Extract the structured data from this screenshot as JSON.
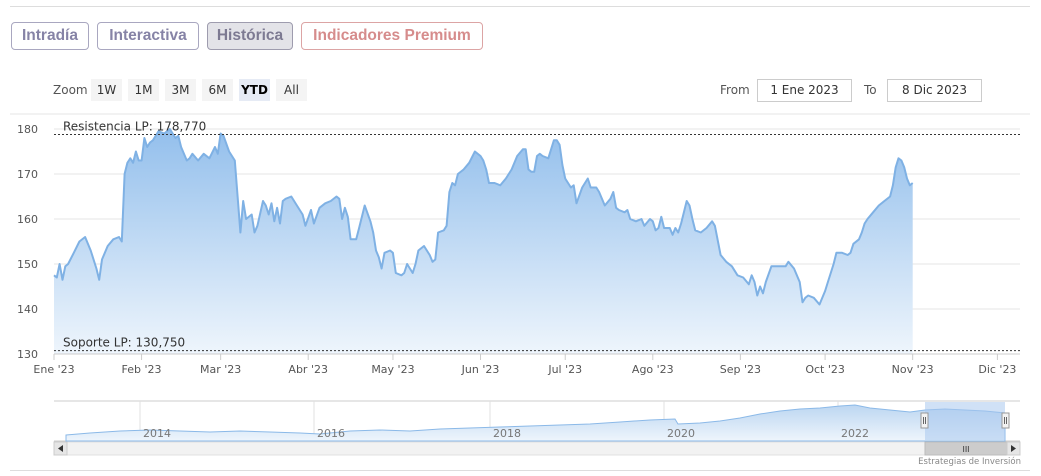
{
  "tabs": [
    {
      "label": "Intradía"
    },
    {
      "label": "Interactiva"
    },
    {
      "label": "Histórica",
      "active": true
    },
    {
      "label": "Indicadores Premium"
    }
  ],
  "zoom": {
    "label": "Zoom",
    "buttons": [
      "1W",
      "1M",
      "3M",
      "6M",
      "YTD",
      "All"
    ],
    "active": "YTD"
  },
  "range": {
    "from_label": "From",
    "from_value": "1 Ene 2023",
    "to_label": "To",
    "to_value": "8 Dic 2023"
  },
  "credit": "Estrategias de Inversión",
  "navigator": {
    "year_labels": [
      "2014",
      "2016",
      "2018",
      "2020",
      "2022"
    ],
    "scroll_grip": "III"
  },
  "colors": {
    "line": "#7fb1e4",
    "fill_top": "#93bfec",
    "fill_bottom": "#eef5fc",
    "resistance": "#333333",
    "support": "#333333"
  },
  "chart_data": {
    "type": "area",
    "title": "",
    "ylim": [
      130,
      182
    ],
    "yticks": [
      130,
      140,
      150,
      160,
      170,
      180
    ],
    "xlim": [
      0,
      342
    ],
    "xticks": [
      {
        "label": "Ene '23",
        "day": 0
      },
      {
        "label": "Feb '23",
        "day": 31
      },
      {
        "label": "Mar '23",
        "day": 59
      },
      {
        "label": "Abr '23",
        "day": 90
      },
      {
        "label": "May '23",
        "day": 120
      },
      {
        "label": "Jun '23",
        "day": 151
      },
      {
        "label": "Jul '23",
        "day": 181
      },
      {
        "label": "Ago '23",
        "day": 212
      },
      {
        "label": "Sep '23",
        "day": 243
      },
      {
        "label": "Oct '23",
        "day": 273
      },
      {
        "label": "Nov '23",
        "day": 304
      },
      {
        "label": "Dic '23",
        "day": 334
      }
    ],
    "resistance": {
      "label": "Resistencia LP: 178,770",
      "value": 178.77
    },
    "support": {
      "label": "Soporte LP: 130,750",
      "value": 130.75
    },
    "series": [
      {
        "points": [
          [
            0,
            147.5
          ],
          [
            1,
            147
          ],
          [
            2,
            150
          ],
          [
            3,
            146.5
          ],
          [
            4,
            149.5
          ],
          [
            5,
            150
          ],
          [
            7,
            152.5
          ],
          [
            9,
            155
          ],
          [
            11,
            156
          ],
          [
            13,
            153
          ],
          [
            15,
            149
          ],
          [
            16,
            146.5
          ],
          [
            17,
            151
          ],
          [
            19,
            154
          ],
          [
            21,
            155.5
          ],
          [
            23,
            156
          ],
          [
            24,
            155
          ],
          [
            25,
            170
          ],
          [
            26,
            172.5
          ],
          [
            27,
            173.5
          ],
          [
            28,
            172.5
          ],
          [
            29,
            175
          ],
          [
            30,
            173
          ],
          [
            31,
            173
          ],
          [
            32,
            178
          ],
          [
            33,
            176
          ],
          [
            34,
            177
          ],
          [
            35,
            177.5
          ],
          [
            37,
            179.5
          ],
          [
            39,
            179
          ],
          [
            41,
            180
          ],
          [
            43,
            178
          ],
          [
            44,
            178.5
          ],
          [
            45,
            176
          ],
          [
            47,
            173
          ],
          [
            48,
            173.5
          ],
          [
            49,
            174.5
          ],
          [
            51,
            173
          ],
          [
            53,
            174.5
          ],
          [
            55,
            173.5
          ],
          [
            57,
            176
          ],
          [
            58,
            174.5
          ],
          [
            59,
            179
          ],
          [
            60,
            178.5
          ],
          [
            62,
            175
          ],
          [
            64,
            173
          ],
          [
            65,
            165
          ],
          [
            66,
            157
          ],
          [
            67,
            164
          ],
          [
            68,
            160
          ],
          [
            70,
            161
          ],
          [
            71,
            157
          ],
          [
            72,
            158.5
          ],
          [
            74,
            164
          ],
          [
            75,
            163
          ],
          [
            76,
            161
          ],
          [
            77,
            163.5
          ],
          [
            78,
            159.5
          ],
          [
            79,
            162.5
          ],
          [
            80,
            159
          ],
          [
            81,
            164
          ],
          [
            82,
            164.5
          ],
          [
            84,
            165
          ],
          [
            86,
            163
          ],
          [
            88,
            161
          ],
          [
            89,
            158.5
          ],
          [
            91,
            162
          ],
          [
            92,
            159
          ],
          [
            94,
            162.5
          ],
          [
            96,
            163.5
          ],
          [
            98,
            164
          ],
          [
            100,
            165
          ],
          [
            101,
            164.5
          ],
          [
            102,
            160
          ],
          [
            103,
            162.5
          ],
          [
            104,
            160.5
          ],
          [
            105,
            155.5
          ],
          [
            107,
            155.5
          ],
          [
            108,
            158
          ],
          [
            110,
            163
          ],
          [
            112,
            159.5
          ],
          [
            113,
            157
          ],
          [
            114,
            153
          ],
          [
            115,
            151.5
          ],
          [
            116,
            149
          ],
          [
            117,
            152.5
          ],
          [
            119,
            153
          ],
          [
            120,
            152.5
          ],
          [
            121,
            148
          ],
          [
            123,
            147.5
          ],
          [
            124,
            148
          ],
          [
            125,
            150
          ],
          [
            127,
            148
          ],
          [
            128,
            150
          ],
          [
            129,
            153
          ],
          [
            131,
            154
          ],
          [
            133,
            152
          ],
          [
            134,
            150.5
          ],
          [
            135,
            151
          ],
          [
            136,
            157
          ],
          [
            138,
            157.5
          ],
          [
            139,
            158.5
          ],
          [
            140,
            166
          ],
          [
            141,
            168
          ],
          [
            142,
            167.5
          ],
          [
            143,
            170
          ],
          [
            145,
            171
          ],
          [
            147,
            172.5
          ],
          [
            149,
            175
          ],
          [
            151,
            174
          ],
          [
            152,
            173
          ],
          [
            153,
            171
          ],
          [
            154,
            168
          ],
          [
            156,
            168
          ],
          [
            158,
            167.5
          ],
          [
            160,
            169
          ],
          [
            162,
            171
          ],
          [
            164,
            174
          ],
          [
            166,
            175.5
          ],
          [
            167,
            175.5
          ],
          [
            168,
            171
          ],
          [
            169,
            170.5
          ],
          [
            170,
            170.5
          ],
          [
            171,
            174
          ],
          [
            172,
            174.5
          ],
          [
            173,
            174
          ],
          [
            175,
            173.5
          ],
          [
            177,
            177.5
          ],
          [
            178,
            177.5
          ],
          [
            179,
            176.5
          ],
          [
            180,
            172
          ],
          [
            181,
            169
          ],
          [
            183,
            167
          ],
          [
            184,
            167.5
          ],
          [
            185,
            163.5
          ],
          [
            187,
            167
          ],
          [
            189,
            169
          ],
          [
            190,
            167
          ],
          [
            192,
            167
          ],
          [
            193,
            166
          ],
          [
            195,
            163
          ],
          [
            197,
            164.5
          ],
          [
            198,
            166
          ],
          [
            199,
            162.5
          ],
          [
            200,
            162
          ],
          [
            202,
            161.5
          ],
          [
            203,
            162
          ],
          [
            204,
            160
          ],
          [
            206,
            159.5
          ],
          [
            208,
            160
          ],
          [
            209,
            158.5
          ],
          [
            211,
            160
          ],
          [
            212,
            159.5
          ],
          [
            213,
            157.5
          ],
          [
            214,
            158
          ],
          [
            215,
            160.5
          ],
          [
            216,
            158
          ],
          [
            218,
            158
          ],
          [
            219,
            156.5
          ],
          [
            220,
            158
          ],
          [
            221,
            157
          ],
          [
            222,
            159
          ],
          [
            224,
            164
          ],
          [
            225,
            163
          ],
          [
            226,
            160
          ],
          [
            227,
            157.5
          ],
          [
            229,
            157
          ],
          [
            231,
            158
          ],
          [
            233,
            159.5
          ],
          [
            234,
            158.5
          ],
          [
            236,
            152
          ],
          [
            238,
            150.5
          ],
          [
            240,
            149.5
          ],
          [
            242,
            147.5
          ],
          [
            244,
            147
          ],
          [
            246,
            145.5
          ],
          [
            247,
            147.5
          ],
          [
            248,
            146
          ],
          [
            249,
            143
          ],
          [
            250,
            145
          ],
          [
            251,
            143.5
          ],
          [
            252,
            146
          ],
          [
            254,
            149.5
          ],
          [
            256,
            149.5
          ],
          [
            258,
            149.5
          ],
          [
            259,
            149.5
          ],
          [
            260,
            150.5
          ],
          [
            262,
            149
          ],
          [
            264,
            146
          ],
          [
            265,
            141.5
          ],
          [
            266,
            142.5
          ],
          [
            267,
            143
          ],
          [
            269,
            142.5
          ],
          [
            271,
            141
          ],
          [
            272,
            142.5
          ],
          [
            273,
            144
          ],
          [
            274,
            146
          ],
          [
            276,
            150
          ],
          [
            277,
            152.5
          ],
          [
            279,
            152.5
          ],
          [
            281,
            152
          ],
          [
            282,
            152.5
          ],
          [
            283,
            154.5
          ],
          [
            285,
            155.5
          ],
          [
            286,
            157
          ],
          [
            287,
            159
          ],
          [
            288,
            160
          ],
          [
            290,
            161.5
          ],
          [
            292,
            163
          ],
          [
            294,
            164
          ],
          [
            296,
            165
          ],
          [
            297,
            167.5
          ],
          [
            298,
            171.5
          ],
          [
            299,
            173.5
          ],
          [
            300,
            173
          ],
          [
            301,
            171.5
          ],
          [
            302,
            169
          ],
          [
            303,
            167.5
          ],
          [
            304,
            168
          ]
        ]
      }
    ]
  }
}
